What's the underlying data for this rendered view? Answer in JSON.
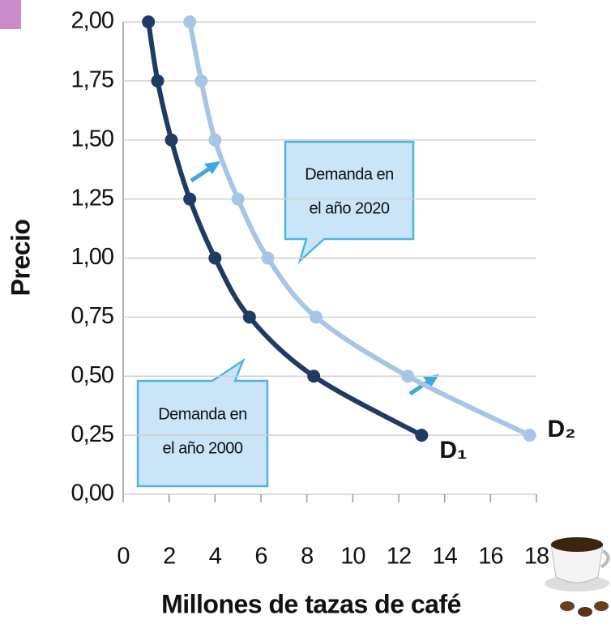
{
  "chart_data": {
    "type": "line",
    "xlabel": "Millones de tazas de café",
    "ylabel": "Precio",
    "xlim": [
      0,
      18
    ],
    "ylim": [
      0,
      2
    ],
    "xticks": [
      0,
      2,
      4,
      6,
      8,
      10,
      12,
      14,
      16,
      18
    ],
    "yticks": [
      {
        "value": 0,
        "label": "0,00"
      },
      {
        "value": 0.25,
        "label": "0,25"
      },
      {
        "value": 0.5,
        "label": "0,50"
      },
      {
        "value": 0.75,
        "label": "0,75"
      },
      {
        "value": 1,
        "label": "1,00"
      },
      {
        "value": 1.25,
        "label": "1,25"
      },
      {
        "value": 1.5,
        "label": "1,50"
      },
      {
        "value": 1.75,
        "label": "1,75"
      },
      {
        "value": 2,
        "label": "2,00"
      }
    ],
    "grid": true,
    "series": [
      {
        "name": "D₁",
        "color": "#1f3b63",
        "x": [
          1.1,
          1.5,
          2.1,
          2.9,
          4,
          5.5,
          8.3,
          13
        ],
        "values": [
          2,
          1.75,
          1.5,
          1.25,
          1,
          0.75,
          0.5,
          0.25
        ]
      },
      {
        "name": "D₂",
        "color": "#a7c5e6",
        "x": [
          2.9,
          3.4,
          4,
          5,
          6.3,
          8.4,
          12.4,
          17.7
        ],
        "values": [
          2,
          1.75,
          1.5,
          1.25,
          1,
          0.75,
          0.5,
          0.25
        ]
      }
    ],
    "annotations": [
      {
        "lines": [
          "Demanda en",
          "el año 2020"
        ]
      },
      {
        "lines": [
          "Demanda en",
          "el año 2000"
        ]
      }
    ]
  }
}
